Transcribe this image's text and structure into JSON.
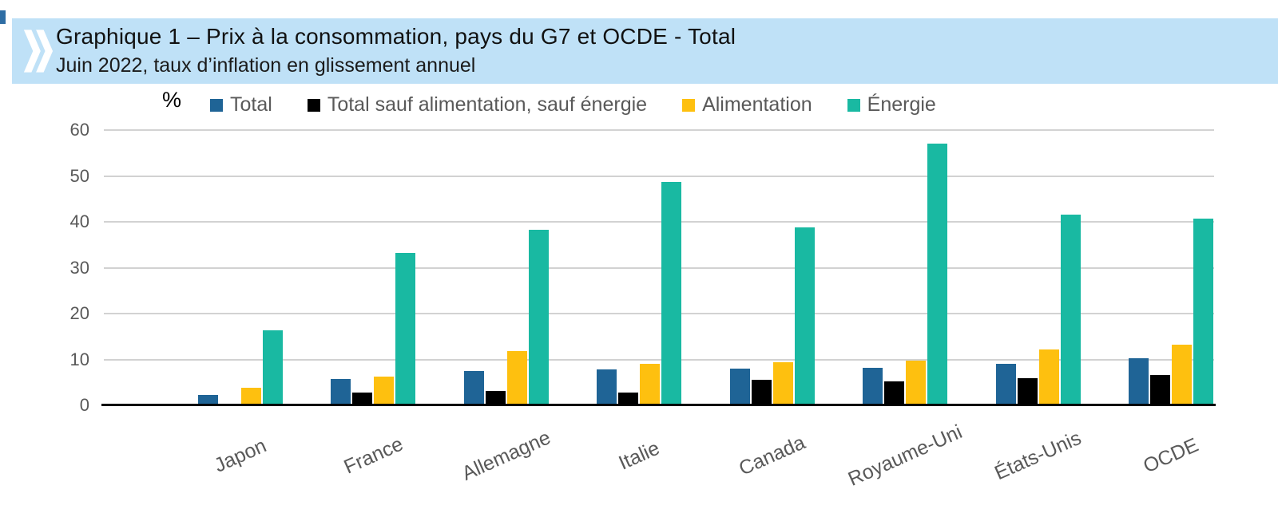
{
  "header": {
    "title": "Graphique 1 – Prix à la consommation, pays du G7 et OCDE - Total",
    "subtitle": "Juin 2022, taux d’inflation en glissement annuel",
    "banner_color": "#BFE1F7",
    "logo_icon": "oecd-double-chevron-icon",
    "logo_color": "#FFFFFF"
  },
  "chart_data": {
    "type": "bar",
    "title": "Prix à la consommation, pays du G7 et OCDE - Total",
    "subtitle": "Juin 2022, taux d’inflation en glissement annuel",
    "unit_label": "%",
    "categories": [
      "Japon",
      "France",
      "Allemagne",
      "Italie",
      "Canada",
      "Royaume-Uni",
      "États-Unis",
      "OCDE"
    ],
    "series": [
      {
        "name": "Total",
        "color": "#1F6496",
        "values": [
          2.3,
          5.8,
          7.5,
          7.9,
          8.0,
          8.2,
          9.1,
          10.3
        ]
      },
      {
        "name": "Total sauf alimentation, sauf énergie",
        "color": "#000000",
        "values": [
          0.2,
          2.7,
          3.1,
          2.8,
          5.5,
          5.2,
          5.9,
          6.6
        ]
      },
      {
        "name": "Alimentation",
        "color": "#FEC00F",
        "values": [
          3.9,
          6.2,
          11.9,
          9.0,
          9.4,
          9.8,
          12.2,
          13.3
        ]
      },
      {
        "name": "Énergie",
        "color": "#19B9A2",
        "values": [
          16.3,
          33.3,
          38.3,
          48.7,
          38.8,
          57.1,
          41.6,
          40.7
        ]
      }
    ],
    "ylim": [
      0,
      60
    ],
    "yticks": [
      0,
      10,
      20,
      30,
      40,
      50,
      60
    ],
    "grid": true,
    "gridline_color": "#D2D2D2",
    "axis_color": "#000000",
    "tick_label_color": "#595959",
    "legend_position": "top"
  }
}
